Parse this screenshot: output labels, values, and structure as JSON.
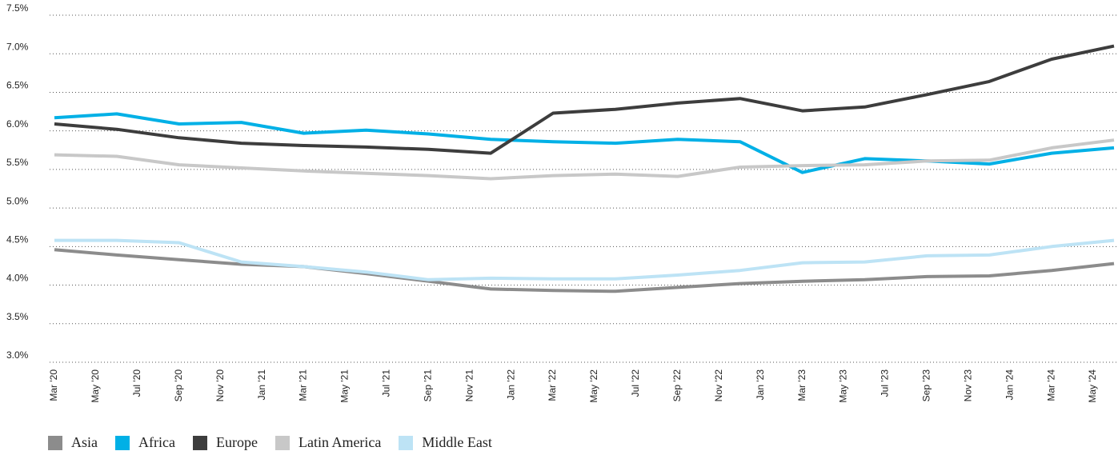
{
  "chart_data": {
    "type": "line",
    "xlim": [
      "Mar '20",
      "Jun '24"
    ],
    "xticks": [
      "Mar '20",
      "May '20",
      "Jul '20",
      "Sep '20",
      "Nov '20",
      "Jan '21",
      "Mar '21",
      "May '21",
      "Jul '21",
      "Sep '21",
      "Nov '21",
      "Jan '22",
      "Mar '22",
      "May '22",
      "Jul '22",
      "Sep '22",
      "Nov '22",
      "Jan '23",
      "Mar '23",
      "May '23",
      "Jul '23",
      "Sep '23",
      "Nov '23",
      "Jan '24",
      "Mar '24",
      "May '24"
    ],
    "x": [
      "Mar '20",
      "Jun '20",
      "Sep '20",
      "Dec '20",
      "Mar '21",
      "Jun '21",
      "Sep '21",
      "Dec '21",
      "Mar '22",
      "Jun '22",
      "Sep '22",
      "Dec '22",
      "Mar '23",
      "Jun '23",
      "Sep '23",
      "Dec '23",
      "Mar '24",
      "Jun '24"
    ],
    "ylim": [
      3,
      7.5
    ],
    "yticks": [
      {
        "value": 3,
        "label": "3.0%"
      },
      {
        "value": 3.5,
        "label": "3.5%"
      },
      {
        "value": 4,
        "label": "4.0%"
      },
      {
        "value": 4.5,
        "label": "4.5%"
      },
      {
        "value": 5,
        "label": "5.0%"
      },
      {
        "value": 5.5,
        "label": "5.5%"
      },
      {
        "value": 6,
        "label": "6.0%"
      },
      {
        "value": 6.5,
        "label": "6.5%"
      },
      {
        "value": 7,
        "label": "7.0%"
      },
      {
        "value": 7.5,
        "label": "7.5%"
      }
    ],
    "grid": true,
    "series": [
      {
        "name": "Asia",
        "color": "#8c8c8c",
        "values": [
          4.46,
          4.39,
          4.33,
          4.27,
          4.24,
          4.15,
          4.05,
          3.95,
          3.93,
          3.92,
          3.97,
          4.02,
          4.05,
          4.07,
          4.11,
          4.12,
          4.19,
          4.28
        ]
      },
      {
        "name": "Africa",
        "color": "#00b0e6",
        "values": [
          6.17,
          6.22,
          6.09,
          6.11,
          5.97,
          6.01,
          5.96,
          5.89,
          5.86,
          5.84,
          5.89,
          5.86,
          5.46,
          5.64,
          5.61,
          5.57,
          5.71,
          5.78
        ]
      },
      {
        "name": "Europe",
        "color": "#3d3d3d",
        "values": [
          6.09,
          6.02,
          5.91,
          5.84,
          5.81,
          5.79,
          5.76,
          5.71,
          6.23,
          6.28,
          6.36,
          6.42,
          6.26,
          6.31,
          6.47,
          6.64,
          6.93,
          7.1
        ]
      },
      {
        "name": "Latin America",
        "color": "#c8c8c8",
        "values": [
          5.69,
          5.67,
          5.56,
          5.52,
          5.48,
          5.45,
          5.42,
          5.38,
          5.42,
          5.44,
          5.41,
          5.53,
          5.55,
          5.56,
          5.61,
          5.62,
          5.78,
          5.88
        ]
      },
      {
        "name": "Middle East",
        "color": "#bde3f5",
        "values": [
          4.58,
          4.58,
          4.55,
          4.3,
          4.24,
          4.17,
          4.07,
          4.09,
          4.08,
          4.08,
          4.13,
          4.19,
          4.29,
          4.3,
          4.38,
          4.39,
          4.5,
          4.58
        ]
      }
    ]
  }
}
